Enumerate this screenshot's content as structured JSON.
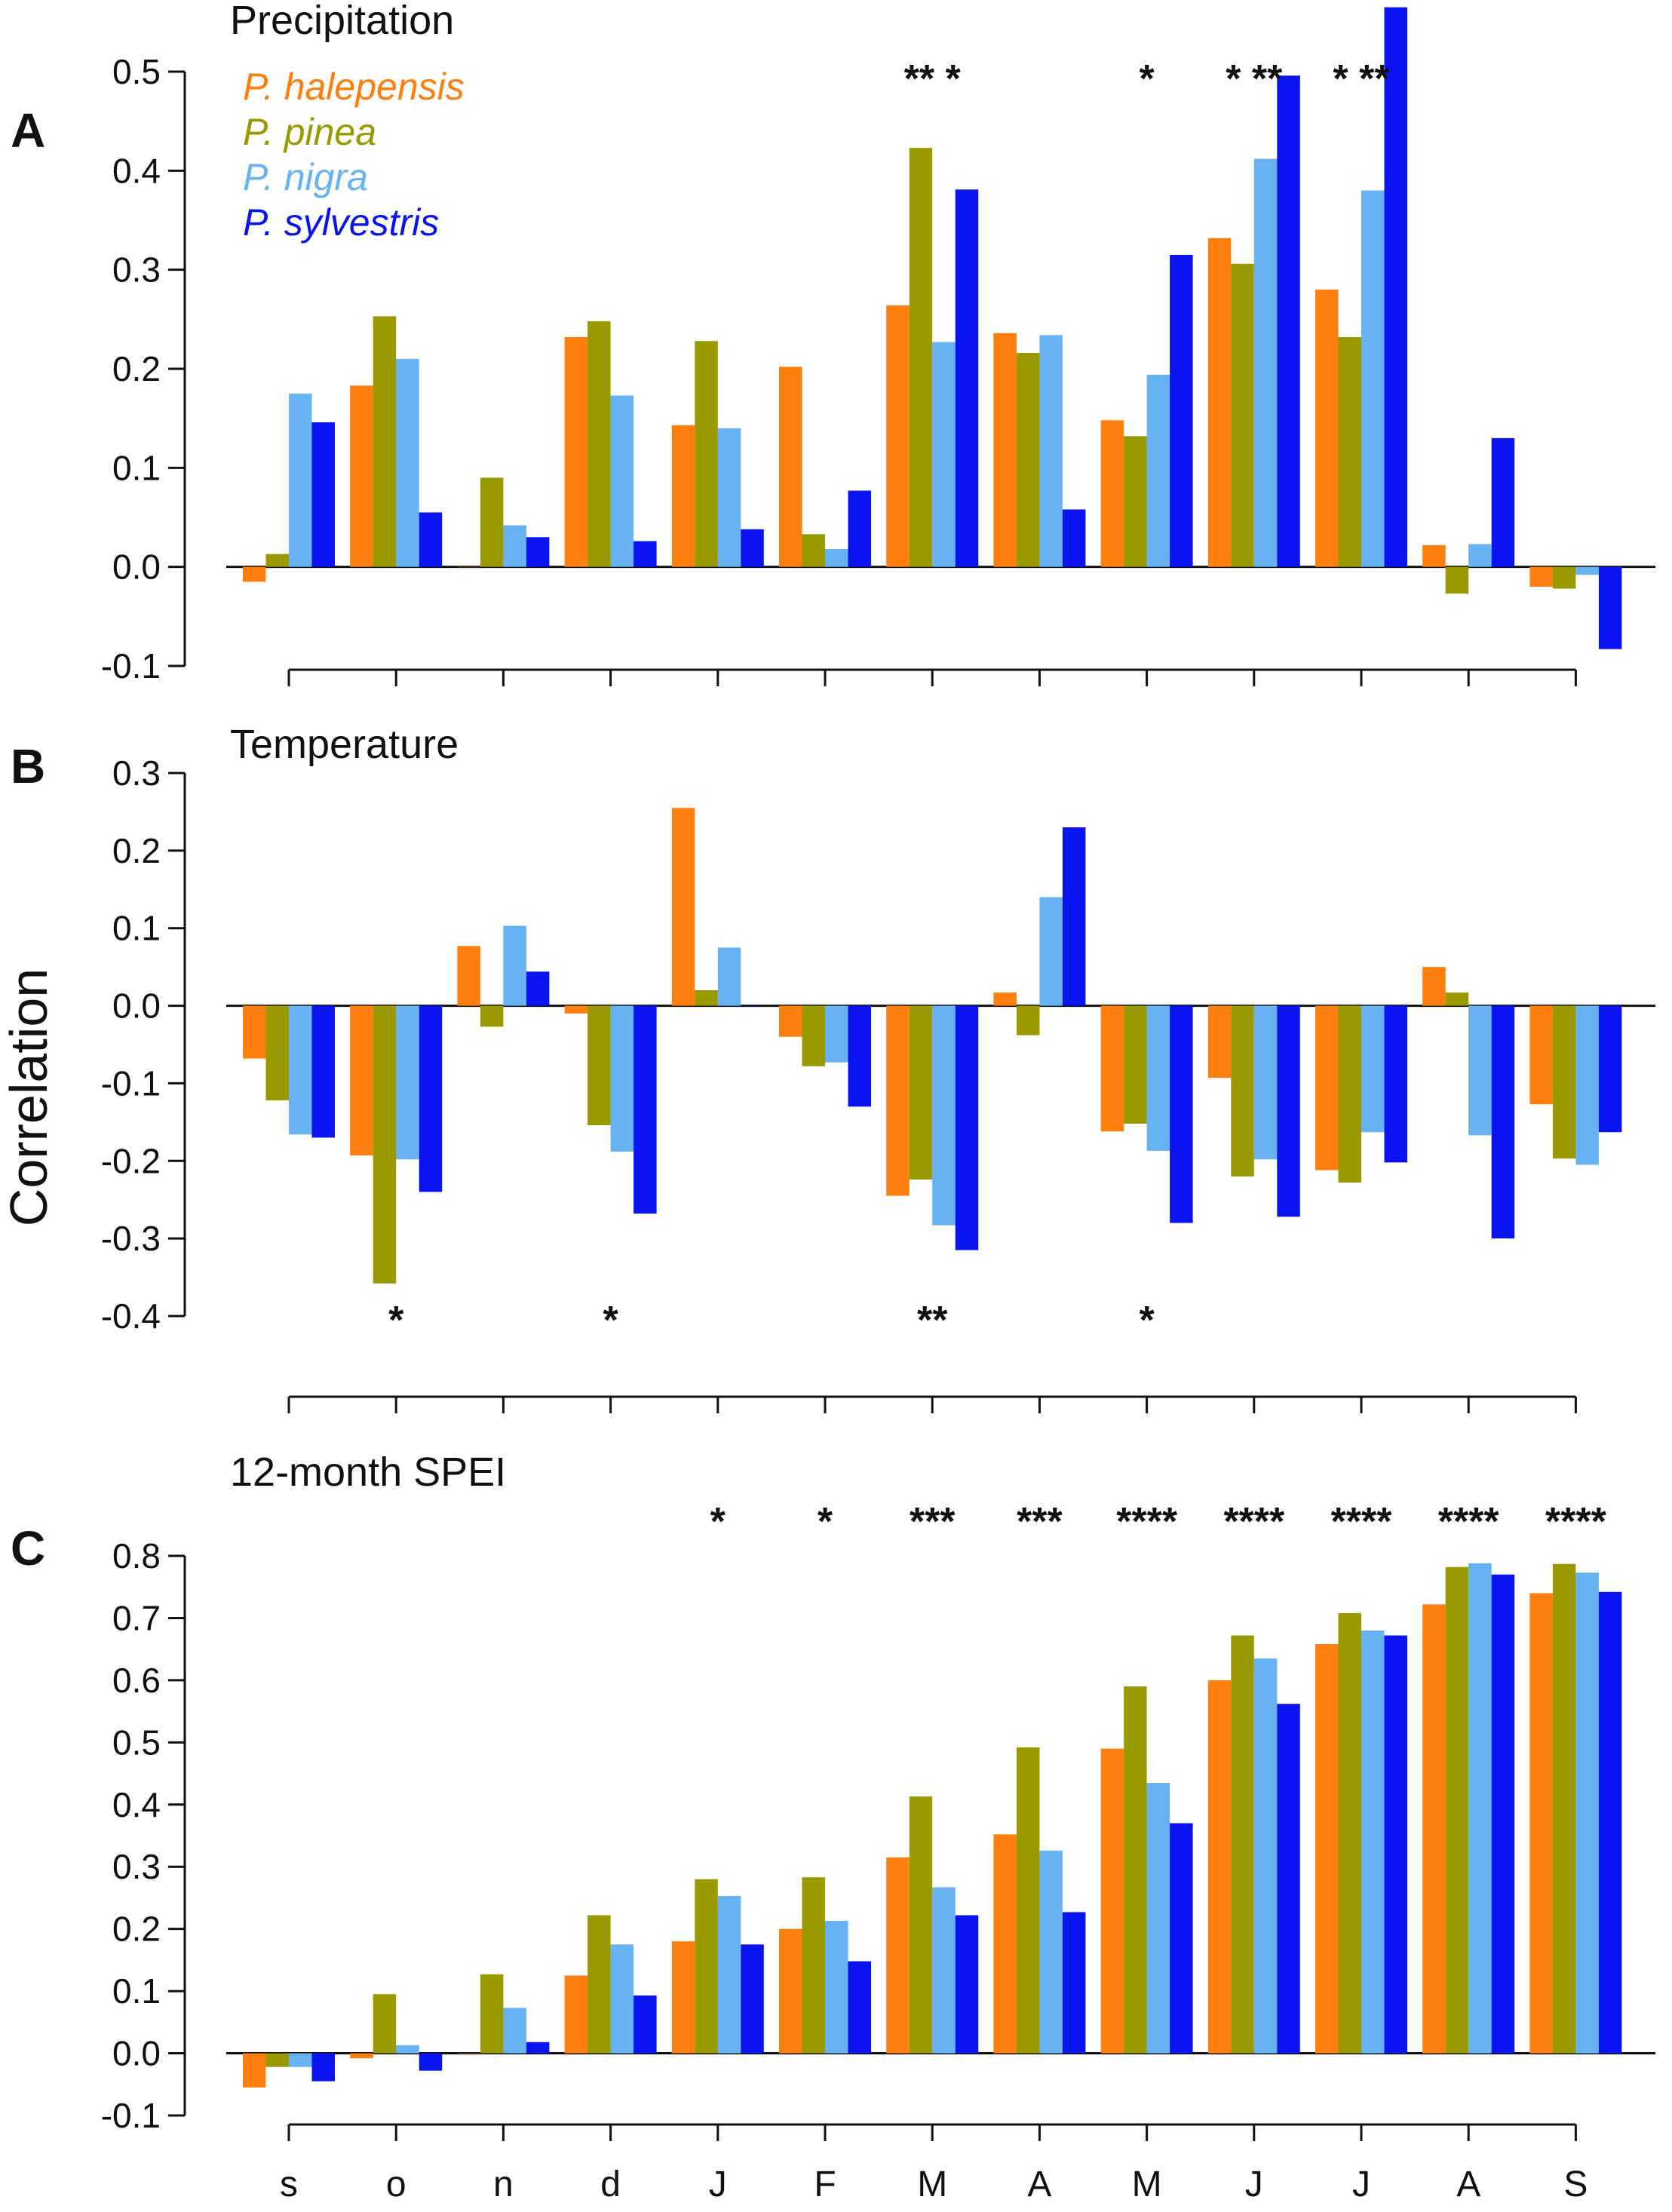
{
  "chart_data": {
    "type": "bar",
    "ylabel": "Correlation",
    "months": [
      "s",
      "o",
      "n",
      "d",
      "J",
      "F",
      "M",
      "A",
      "M",
      "J",
      "J",
      "A",
      "S"
    ],
    "legend": [
      {
        "label": "P. halepensis",
        "color": "#ff7f0e"
      },
      {
        "label": "P. pinea",
        "color": "#999900"
      },
      {
        "label": "P. nigra",
        "color": "#66b2f2"
      },
      {
        "label": "P. sylvestris",
        "color": "#0a14f0"
      }
    ],
    "panels": [
      {
        "letter": "A",
        "title": "Precipitation",
        "ylim": [
          -0.1,
          0.58
        ],
        "yticks": [
          "-0.1",
          "0.0",
          "0.1",
          "0.2",
          "0.3",
          "0.4",
          "0.5"
        ],
        "series": [
          {
            "name": "P. halepensis",
            "values": [
              -0.015,
              0.183,
              0.0,
              0.232,
              0.143,
              0.202,
              0.264,
              0.236,
              0.148,
              0.332,
              0.28,
              0.022,
              -0.02
            ]
          },
          {
            "name": "P. pinea",
            "values": [
              0.013,
              0.253,
              0.09,
              0.248,
              0.228,
              0.033,
              0.423,
              0.216,
              0.132,
              0.306,
              0.232,
              -0.027,
              -0.022
            ]
          },
          {
            "name": "P. nigra",
            "values": [
              0.175,
              0.21,
              0.042,
              0.173,
              0.14,
              0.018,
              0.227,
              0.234,
              0.194,
              0.412,
              0.38,
              0.023,
              -0.008
            ]
          },
          {
            "name": "P. sylvestris",
            "values": [
              0.146,
              0.055,
              0.03,
              0.026,
              0.038,
              0.077,
              0.381,
              0.058,
              0.315,
              0.496,
              0.565,
              0.13,
              -0.083
            ]
          }
        ],
        "significance": [
          "",
          "",
          "",
          "",
          "",
          "",
          "** *",
          "",
          "*",
          "* **",
          "* **",
          "",
          ""
        ],
        "sig_position": "top"
      },
      {
        "letter": "B",
        "title": "Temperature",
        "ylim": [
          -0.4,
          0.3
        ],
        "yticks": [
          "-0.4",
          "-0.3",
          "-0.2",
          "-0.1",
          "0.0",
          "0.1",
          "0.2",
          "0.3"
        ],
        "series": [
          {
            "name": "P. halepensis",
            "values": [
              -0.068,
              -0.193,
              0.077,
              -0.01,
              0.255,
              -0.04,
              -0.245,
              0.017,
              -0.162,
              -0.093,
              -0.212,
              0.05,
              -0.127
            ]
          },
          {
            "name": "P. pinea",
            "values": [
              -0.122,
              -0.358,
              -0.027,
              -0.154,
              0.02,
              -0.078,
              -0.224,
              -0.038,
              -0.152,
              -0.22,
              -0.228,
              0.017,
              -0.197
            ]
          },
          {
            "name": "P. nigra",
            "values": [
              -0.166,
              -0.198,
              0.103,
              -0.188,
              0.075,
              -0.073,
              -0.283,
              0.14,
              -0.187,
              -0.198,
              -0.163,
              -0.167,
              -0.205
            ]
          },
          {
            "name": "P. sylvestris",
            "values": [
              -0.17,
              -0.24,
              0.044,
              -0.268,
              0.0,
              -0.13,
              -0.315,
              0.23,
              -0.28,
              -0.272,
              -0.202,
              -0.3,
              -0.163
            ]
          }
        ],
        "significance": [
          "",
          "*",
          "",
          "*",
          "",
          "",
          "**",
          "",
          "*",
          "",
          "",
          "",
          ""
        ],
        "sig_position": "bottom"
      },
      {
        "letter": "C",
        "title": "12-month SPEI",
        "ylim": [
          -0.1,
          0.8
        ],
        "yticks": [
          "-0.1",
          "0.0",
          "0.1",
          "0.2",
          "0.3",
          "0.4",
          "0.5",
          "0.6",
          "0.7",
          "0.8"
        ],
        "series": [
          {
            "name": "P. halepensis",
            "values": [
              -0.055,
              -0.008,
              0.0,
              0.125,
              0.18,
              0.2,
              0.315,
              0.352,
              0.49,
              0.6,
              0.658,
              0.722,
              0.74
            ]
          },
          {
            "name": "P. pinea",
            "values": [
              -0.022,
              0.095,
              0.127,
              0.222,
              0.28,
              0.283,
              0.413,
              0.492,
              0.59,
              0.672,
              0.708,
              0.782,
              0.787
            ]
          },
          {
            "name": "P. nigra",
            "values": [
              -0.022,
              0.013,
              0.073,
              0.175,
              0.253,
              0.213,
              0.267,
              0.326,
              0.435,
              0.635,
              0.68,
              0.788,
              0.773
            ]
          },
          {
            "name": "P. sylvestris",
            "values": [
              -0.045,
              -0.028,
              0.018,
              0.093,
              0.175,
              0.148,
              0.222,
              0.227,
              0.37,
              0.562,
              0.672,
              0.77,
              0.742
            ]
          }
        ],
        "significance": [
          "",
          "",
          "",
          "",
          "*",
          "*",
          "***",
          "***",
          "****",
          "****",
          "****",
          "****",
          "****"
        ],
        "sig_position": "top"
      }
    ]
  }
}
